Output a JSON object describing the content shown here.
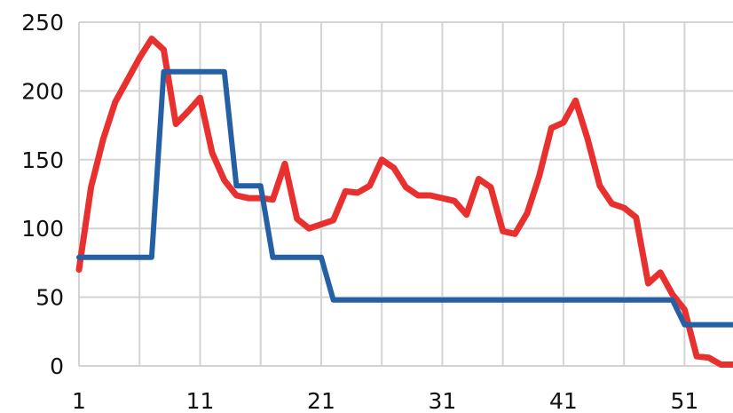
{
  "chart_data": {
    "type": "line",
    "title": "",
    "xlabel": "",
    "ylabel": "",
    "grid": true,
    "legend": "none",
    "x": [
      1,
      2,
      3,
      4,
      5,
      6,
      7,
      8,
      9,
      10,
      11,
      12,
      13,
      14,
      15,
      16,
      17,
      18,
      19,
      20,
      21,
      22,
      23,
      24,
      25,
      26,
      27,
      28,
      29,
      30,
      31,
      32,
      33,
      34,
      35,
      36,
      37,
      38,
      39,
      40,
      41,
      42,
      43,
      44,
      45,
      46,
      47,
      48,
      49,
      50,
      51,
      52,
      53,
      54,
      55
    ],
    "xlim": [
      1,
      55
    ],
    "ylim": [
      0,
      250
    ],
    "x_ticks": [
      1,
      11,
      21,
      31,
      41,
      51
    ],
    "y_ticks": [
      0,
      50,
      100,
      150,
      200,
      250
    ],
    "series": [
      {
        "name": "",
        "color": "#e8312f",
        "values": [
          70,
          130,
          165,
          192,
          208,
          224,
          238,
          230,
          176,
          185,
          195,
          155,
          135,
          124,
          122,
          122,
          121,
          147,
          107,
          100,
          103,
          106,
          127,
          126,
          131,
          150,
          144,
          130,
          124,
          124,
          122,
          120,
          110,
          136,
          130,
          98,
          96,
          111,
          138,
          173,
          177,
          193,
          165,
          131,
          118,
          115,
          108,
          60,
          68,
          52,
          41,
          7,
          6,
          1,
          1
        ]
      },
      {
        "name": "",
        "color": "#2660a4",
        "values": [
          79,
          79,
          79,
          79,
          79,
          79,
          79,
          214,
          214,
          214,
          214,
          214,
          214,
          131,
          131,
          131,
          79,
          79,
          79,
          79,
          79,
          48,
          48,
          48,
          48,
          48,
          48,
          48,
          48,
          48,
          48,
          48,
          48,
          48,
          48,
          48,
          48,
          48,
          48,
          48,
          48,
          48,
          48,
          48,
          48,
          48,
          48,
          48,
          48,
          48,
          30,
          30,
          30,
          30,
          30
        ]
      }
    ]
  }
}
